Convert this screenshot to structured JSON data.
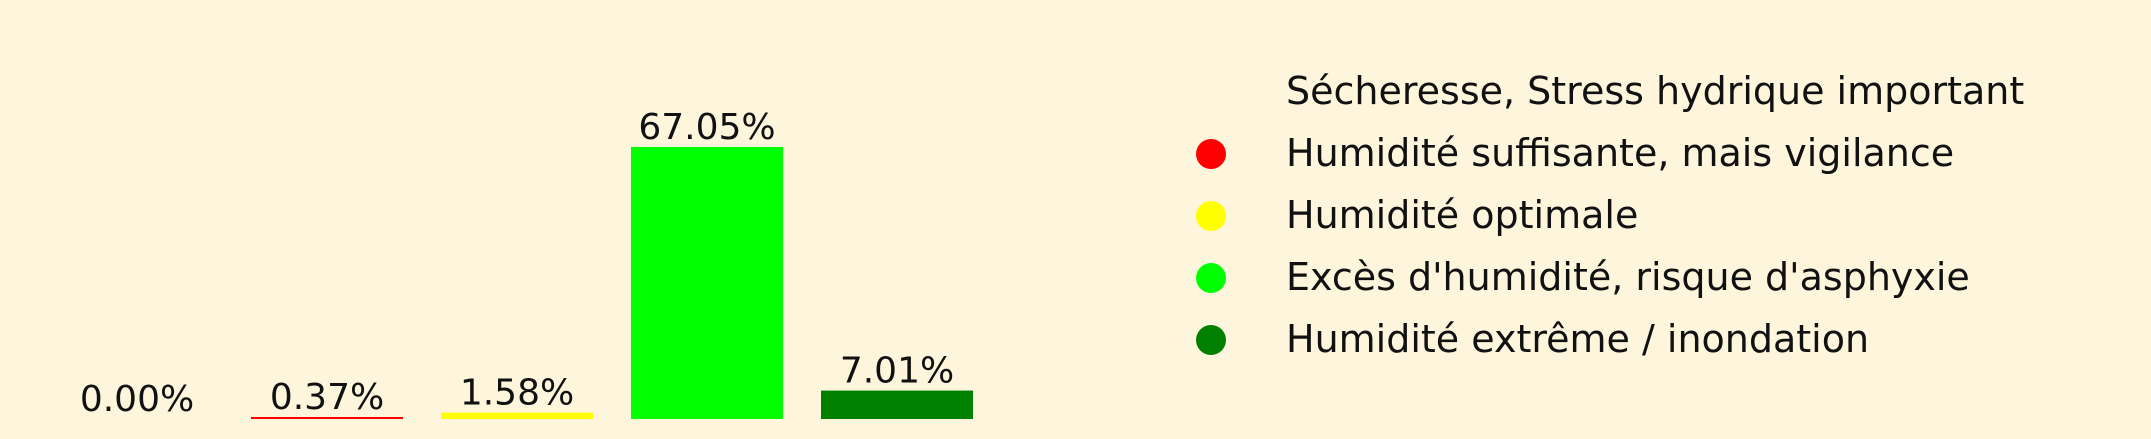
{
  "chart_data": {
    "type": "bar",
    "categories": [
      "Sécheresse, Stress hydrique important",
      "Humidité suffisante, mais vigilance",
      "Humidité optimale",
      "Excès d'humidité, risque d'asphyxie",
      "Humidité extrême / inondation"
    ],
    "values": [
      0.0,
      0.37,
      1.58,
      67.05,
      7.01
    ],
    "value_labels": [
      "0.00%",
      "0.37%",
      "1.58%",
      "67.05%",
      "7.01%"
    ],
    "colors": [
      "#fdf6dc",
      "#ff0000",
      "#ffff00",
      "#00ff00",
      "#008000"
    ],
    "title": "",
    "xlabel": "",
    "ylabel": "",
    "ylim": [
      0,
      67.05
    ],
    "grid": false,
    "legend_position": "right",
    "legend_marker_colors": [
      "#fdf6dc",
      "#ff0000",
      "#ffff00",
      "#00ff00",
      "#008000"
    ]
  },
  "background_color": "#fdf6dc"
}
